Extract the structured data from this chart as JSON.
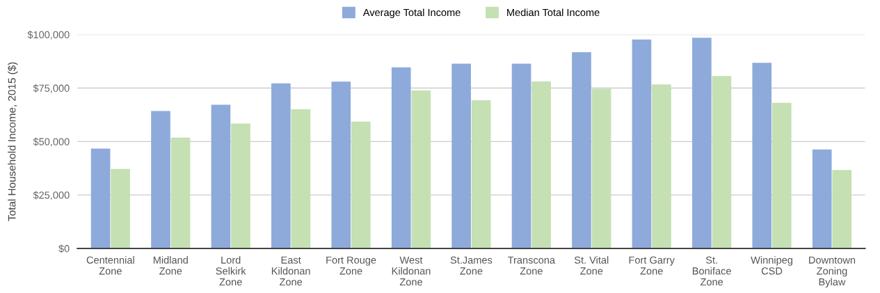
{
  "chart_data": {
    "type": "bar",
    "ylabel": "Total Household Income, 2015 ($)",
    "categories": [
      "Centennial\nZone",
      "Midland\nZone",
      "Lord\nSelkirk\nZone",
      "East\nKildonan\nZone",
      "Fort Rouge\nZone",
      "West\nKildonan\nZone",
      "St.James\nZone",
      "Transcona\nZone",
      "St. Vital\nZone",
      "Fort Garry\nZone",
      "St.\nBoniface\nZone",
      "Winnipeg\nCSD",
      "Downtown\nZoning\nBylaw"
    ],
    "series": [
      {
        "name": "Average Total Income",
        "color": "#8eaadb",
        "values": [
          46700,
          64300,
          67200,
          77200,
          78000,
          84700,
          86400,
          86400,
          91800,
          97700,
          98500,
          86800,
          46300
        ]
      },
      {
        "name": "Median Total Income",
        "color": "#c5e0b3",
        "values": [
          37200,
          51800,
          58400,
          65100,
          59300,
          73900,
          69300,
          78100,
          74700,
          76700,
          80600,
          68100,
          36700
        ]
      }
    ],
    "ylim": [
      0,
      100000
    ],
    "yticks": [
      {
        "value": 0,
        "label": "$0"
      },
      {
        "value": 25000,
        "label": "$25,000"
      },
      {
        "value": 50000,
        "label": "$50,000"
      },
      {
        "value": 75000,
        "label": "$75,000"
      },
      {
        "value": 100000,
        "label": "$100,000"
      }
    ],
    "grid": "y",
    "legend": "top"
  }
}
